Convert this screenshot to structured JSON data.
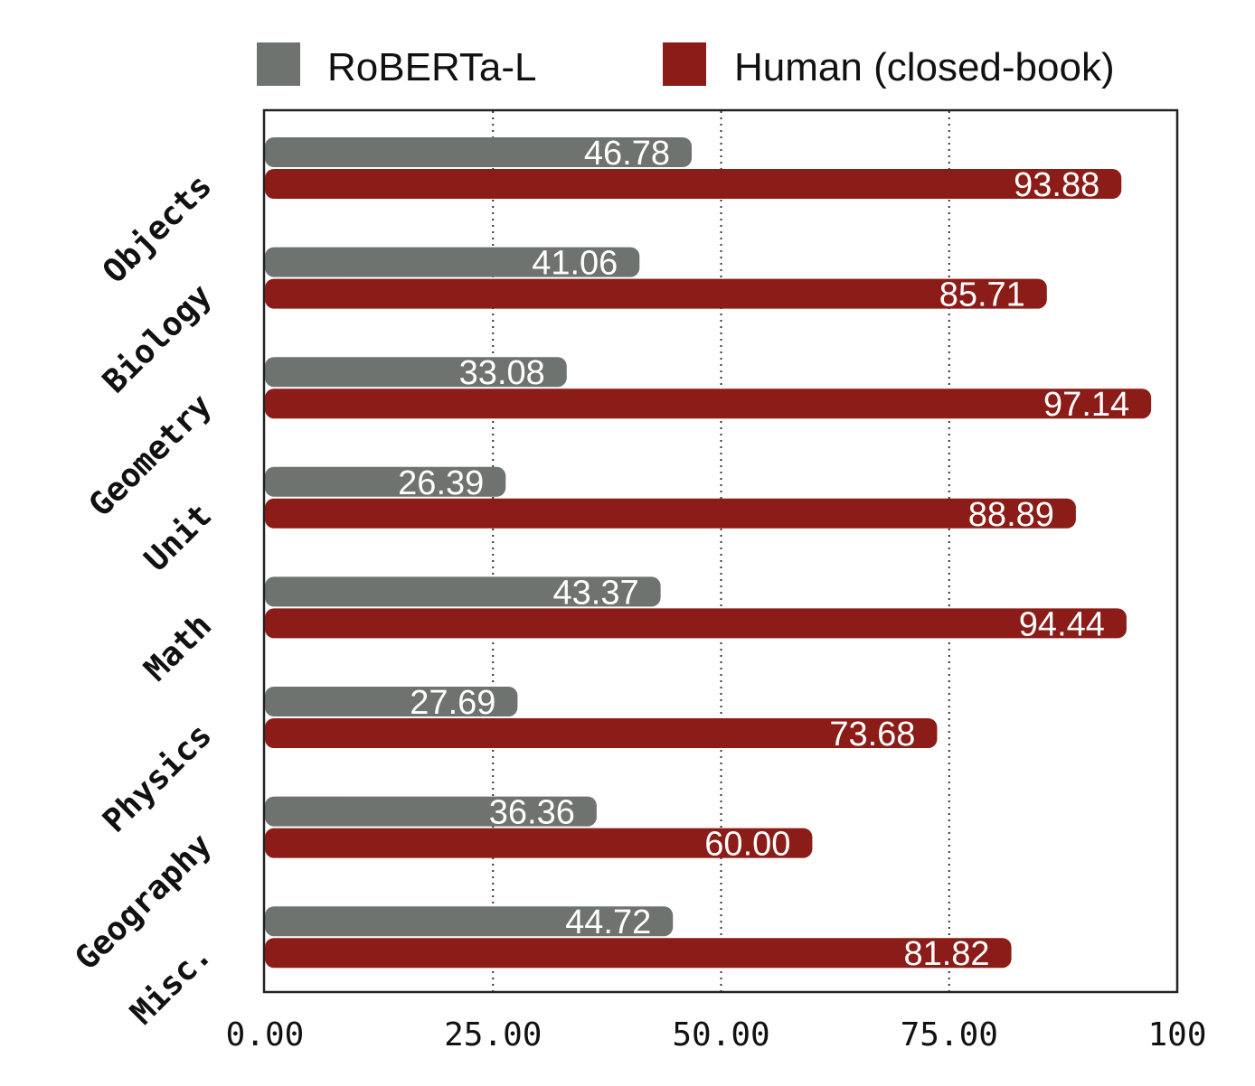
{
  "chart_data": {
    "type": "bar",
    "orientation": "horizontal",
    "categories": [
      "Objects",
      "Biology",
      "Geometry",
      "Unit",
      "Math",
      "Physics",
      "Geography",
      "Misc."
    ],
    "series": [
      {
        "name": "RoBERTa-L",
        "color": "#6f7370",
        "values": [
          46.78,
          41.06,
          33.08,
          26.39,
          43.37,
          27.69,
          36.36,
          44.72
        ],
        "labels": [
          "46.78",
          "41.06",
          "33.08",
          "26.39",
          "43.37",
          "27.69",
          "36.36",
          "44.72"
        ]
      },
      {
        "name": "Human (closed-book)",
        "color": "#8b1c17",
        "values": [
          93.88,
          85.71,
          97.14,
          88.89,
          94.44,
          73.68,
          60.0,
          81.82
        ],
        "labels": [
          "93.88",
          "85.71",
          "97.14",
          "88.89",
          "94.44",
          "73.68",
          "60.00",
          "81.82"
        ]
      }
    ],
    "xlim": [
      0,
      100
    ],
    "xticks": [
      0,
      25,
      50,
      75,
      100
    ],
    "xtick_labels": [
      "0.00",
      "25.00",
      "50.00",
      "75.00",
      "100"
    ],
    "grid": "vertical dotted",
    "legend": "top"
  }
}
